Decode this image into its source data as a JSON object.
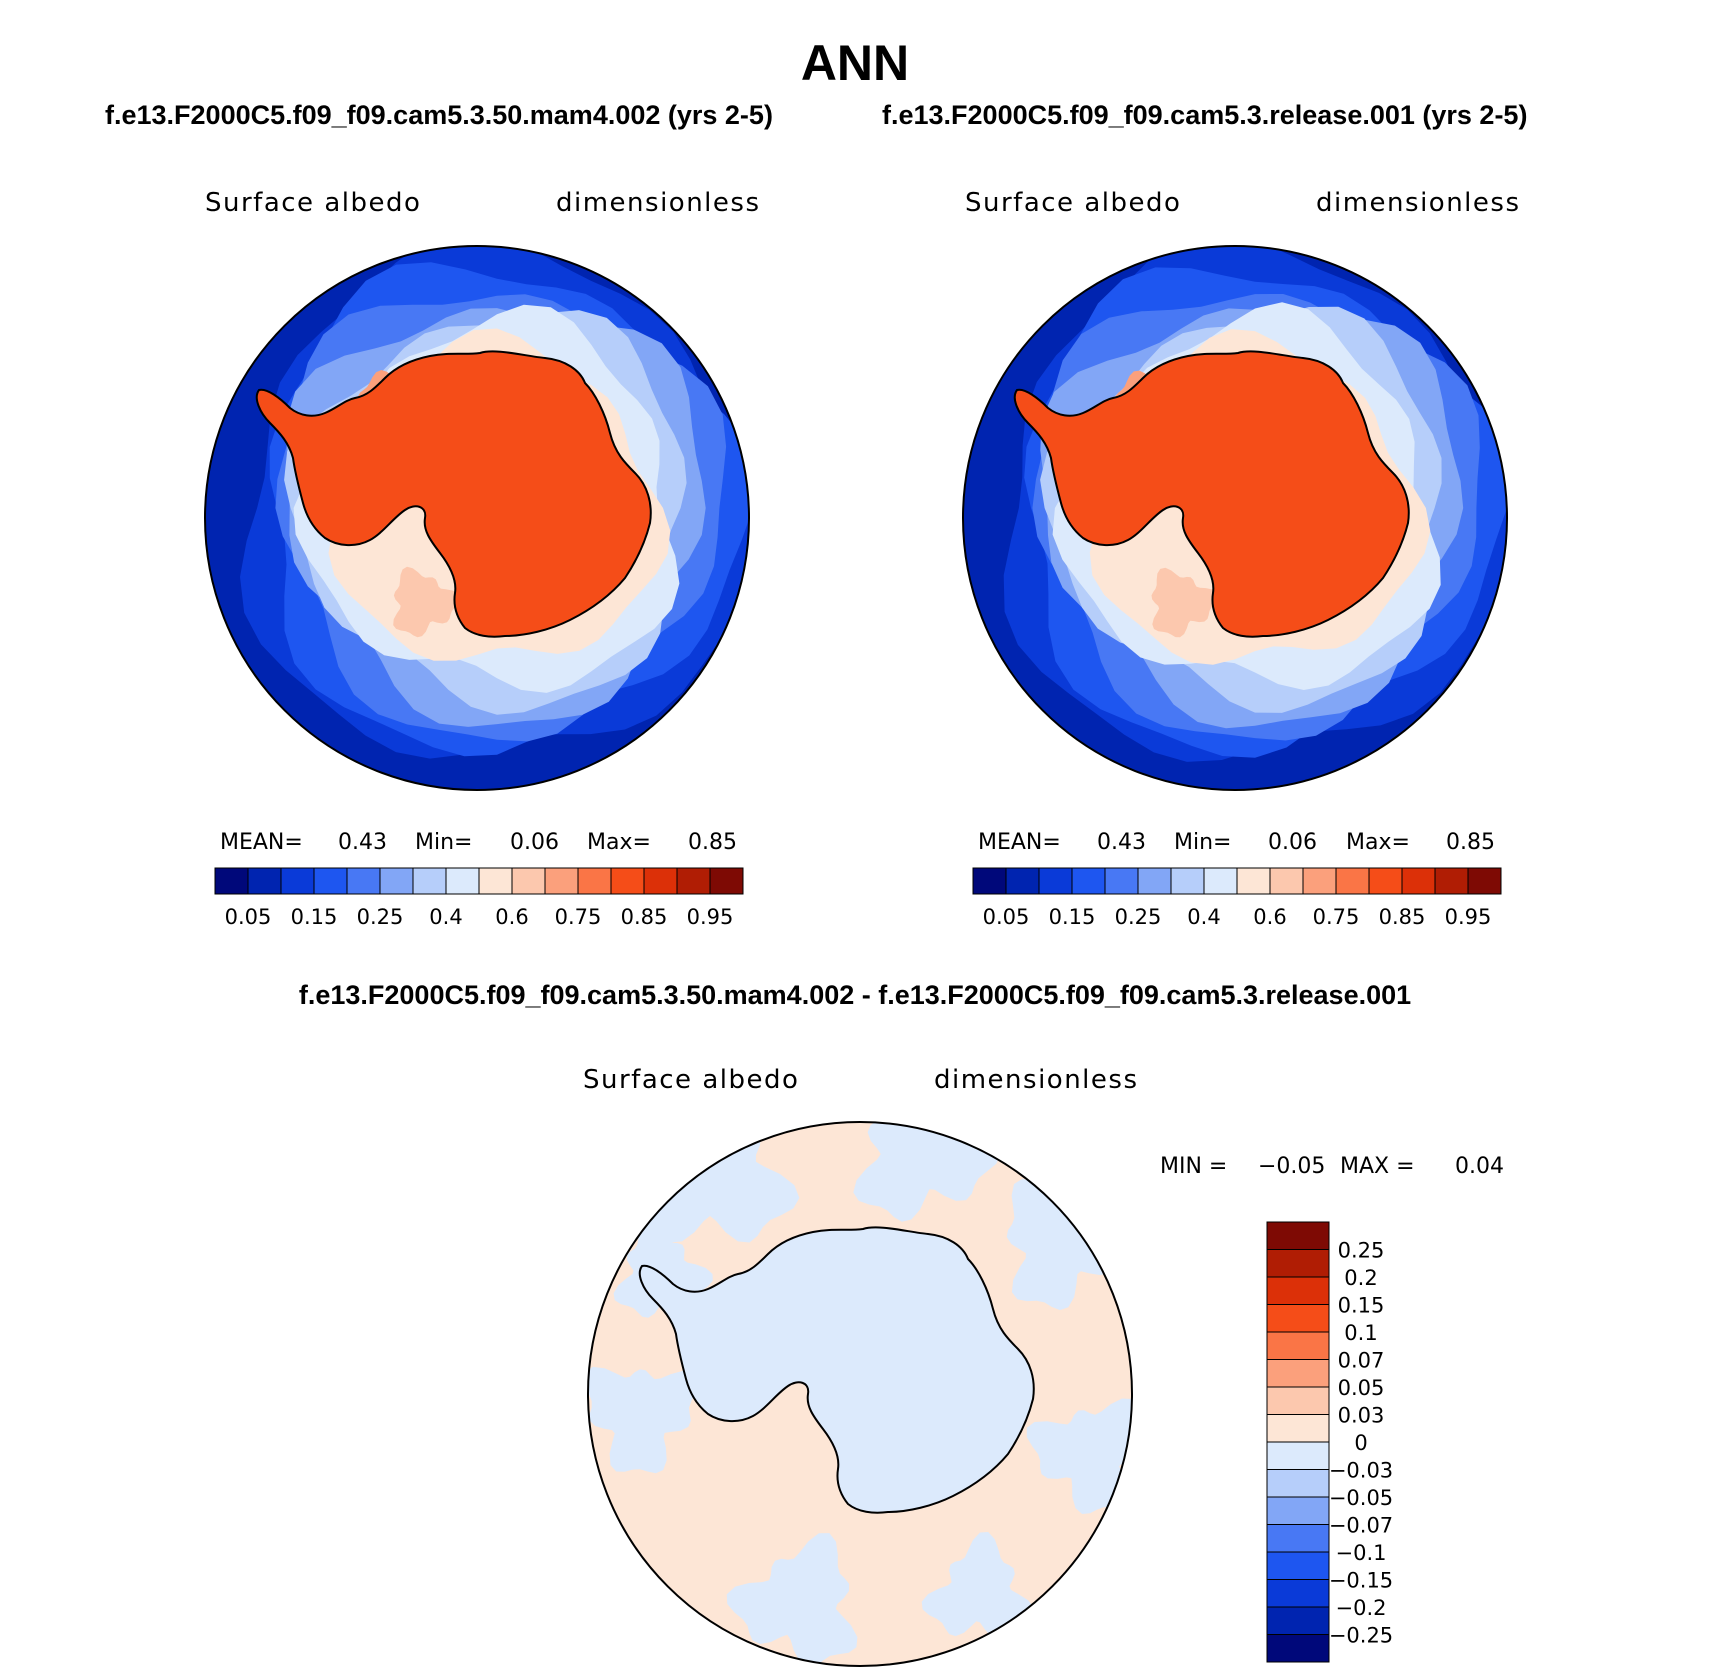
{
  "title": "ANN",
  "panels": [
    {
      "case": "f.e13.F2000C5.f09_f09.cam5.3.50.mam4.002 (yrs 2-5)",
      "variable": "Surface albedo",
      "units": "dimensionless",
      "mean_label": "MEAN=",
      "mean": "0.43",
      "min_label": "Min=",
      "min": "0.06",
      "max_label": "Max=",
      "max": "0.85"
    },
    {
      "case": "f.e13.F2000C5.f09_f09.cam5.3.release.001 (yrs 2-5)",
      "variable": "Surface albedo",
      "units": "dimensionless",
      "mean_label": "MEAN=",
      "mean": "0.43",
      "min_label": "Min=",
      "min": "0.06",
      "max_label": "Max=",
      "max": "0.85"
    }
  ],
  "diff": {
    "title": "f.e13.F2000C5.f09_f09.cam5.3.50.mam4.002 - f.e13.F2000C5.f09_f09.cam5.3.release.001",
    "variable": "Surface albedo",
    "units": "dimensionless",
    "min_label": "MIN =",
    "min": "−0.05",
    "max_label": "MAX =",
    "max": "0.04"
  },
  "colorbar_main": {
    "colors": [
      "#00087a",
      "#0024b0",
      "#0a3ad8",
      "#1e56f0",
      "#4878f4",
      "#82a6f6",
      "#b6cefa",
      "#dceafc",
      "#fde6d6",
      "#fcc8ae",
      "#fba07c",
      "#fa7546",
      "#f54d18",
      "#dc3008",
      "#b01d04",
      "#7e0a04"
    ],
    "labels": [
      "0.05",
      "0.15",
      "0.25",
      "0.4",
      "0.6",
      "0.75",
      "0.85",
      "0.95"
    ]
  },
  "colorbar_diff": {
    "colors": [
      "#7e0a04",
      "#b01d04",
      "#dc3008",
      "#f54d18",
      "#fa7546",
      "#fba07c",
      "#fcc8ae",
      "#fde6d6",
      "#dceafc",
      "#b6cefa",
      "#82a6f6",
      "#4878f4",
      "#1e56f0",
      "#0a3ad8",
      "#0024b0",
      "#00087a"
    ],
    "labels": [
      "0.25",
      "0.2",
      "0.15",
      "0.1",
      "0.07",
      "0.05",
      "0.03",
      "0",
      "−0.03",
      "−0.05",
      "−0.07",
      "−0.1",
      "−0.15",
      "−0.2",
      "−0.25"
    ]
  },
  "map_colors": {
    "ocean_deep": "#0024b0",
    "ocean_mid1": "#0a3ad8",
    "ocean_mid2": "#1e56f0",
    "ocean_mid3": "#4878f4",
    "seaice_low": "#82a6f6",
    "seaice_mid": "#b6cefa",
    "seaice_high": "#dceafc",
    "pack_ice": "#fde6d6",
    "ice_shelf": "#fcc8ae",
    "ice_shelf2": "#fba07c",
    "continent": "#f54d18",
    "diff_neg": "#dceafc",
    "diff_pos": "#fde6d6"
  }
}
